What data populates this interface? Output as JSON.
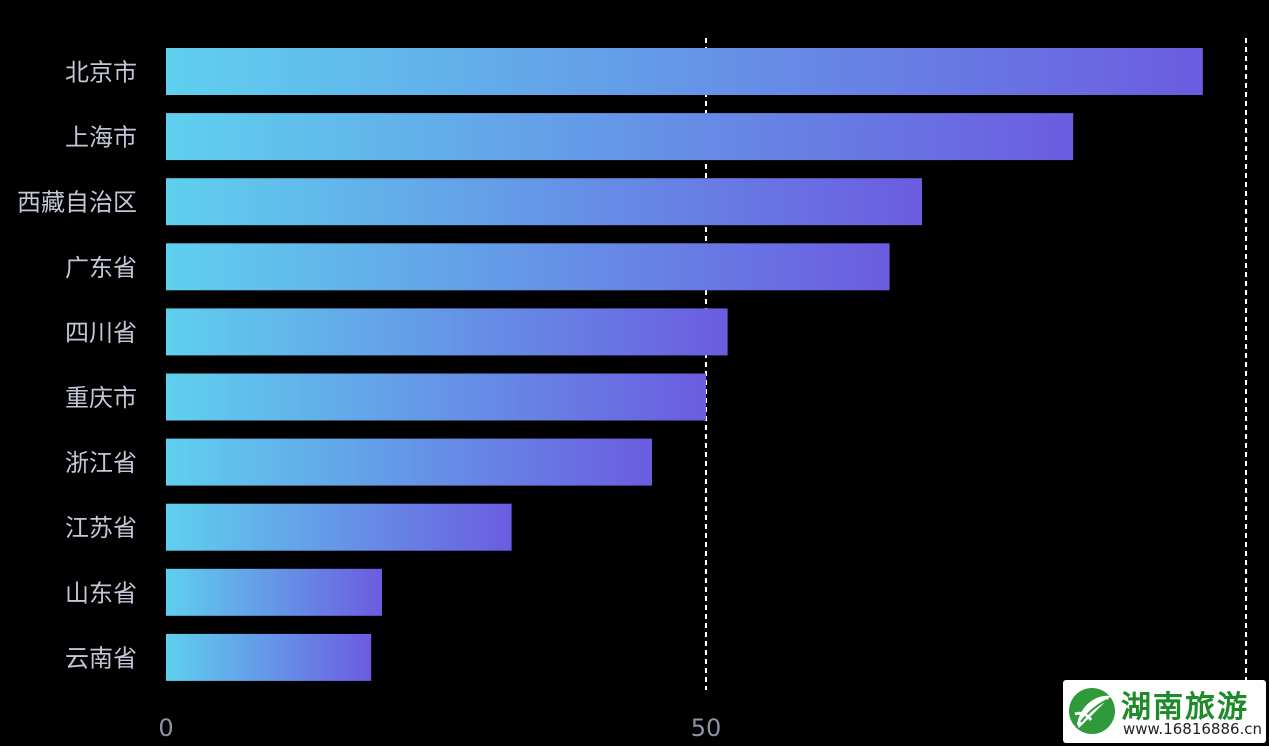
{
  "chart_data": {
    "type": "bar",
    "orientation": "horizontal",
    "categories": [
      "北京市",
      "上海市",
      "西藏自治区",
      "广东省",
      "四川省",
      "重庆市",
      "浙江省",
      "江苏省",
      "山东省",
      "云南省"
    ],
    "values": [
      96,
      84,
      70,
      67,
      52,
      50,
      45,
      32,
      20,
      19
    ],
    "xlim": [
      0,
      100
    ],
    "x_ticks": [
      0,
      50
    ],
    "x_tick_labels": [
      "0",
      "50"
    ],
    "gridlines": [
      50,
      100
    ],
    "grid": "dashed vertical",
    "title": "",
    "xlabel": "",
    "ylabel": "",
    "colors": {
      "background": "#000000",
      "bar_gradient_start": "#5fd0ee",
      "bar_gradient_end": "#6b5ce0",
      "label": "#c3c6d6",
      "tick": "#8e93a8",
      "grid": "#ffffff"
    }
  },
  "watermark": {
    "title": "湖南旅游",
    "url": "www.16816886.cn"
  }
}
